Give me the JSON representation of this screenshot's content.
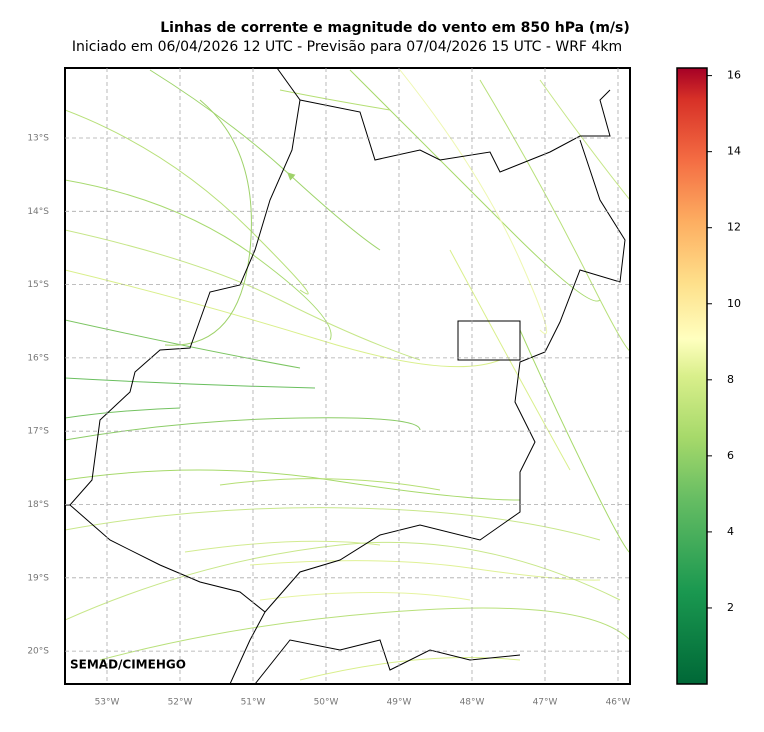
{
  "title": "Linhas de corrente e magnitude do vento em 850 hPa (m/s)",
  "subtitle": "Iniciado em 06/04/2026 12 UTC - Previsão para 07/04/2026 15 UTC - WRF 4km",
  "map": {
    "lon_labels": [
      "53°W",
      "52°W",
      "51°W",
      "50°W",
      "49°W",
      "48°W",
      "47°W",
      "46°W"
    ],
    "lat_labels": [
      "13°S",
      "14°S",
      "15°S",
      "16°S",
      "17°S",
      "18°S",
      "19°S",
      "20°S"
    ],
    "credit": "SEMAD/CIMEHGO"
  },
  "colorbar": {
    "range": [
      0,
      16.2
    ],
    "ticks": [
      2,
      4,
      6,
      8,
      10,
      12,
      14,
      16
    ]
  }
}
